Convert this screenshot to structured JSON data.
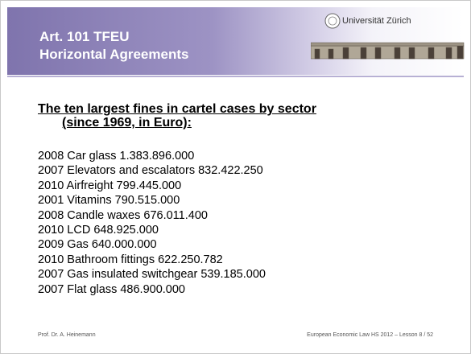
{
  "header": {
    "title_lines": [
      "Art. 101 TFEU",
      "Horizontal Agreements"
    ]
  },
  "logo": {
    "text": "Universität Zürich"
  },
  "heading": {
    "lines": [
      "The ten largest fines in cartel cases by sector",
      "(since 1969, in Euro):"
    ]
  },
  "items": [
    "2008 Car glass 1.383.896.000",
    "2007 Elevators and escalators 832.422.250",
    "2010 Airfreight 799.445.000",
    "2001 Vitamins 790.515.000",
    "2008 Candle waxes 676.011.400",
    "2010 LCD 648.925.000",
    "2009 Gas 640.000.000",
    "2010 Bathroom fittings 622.250.782",
    "2007 Gas insulated switchgear 539.185.000",
    "2007 Flat glass 486.900.000"
  ],
  "footer": {
    "left": "Prof. Dr. A. Heinemann",
    "right": "European Economic Law HS 2012 – Lesson 8  /  52"
  }
}
